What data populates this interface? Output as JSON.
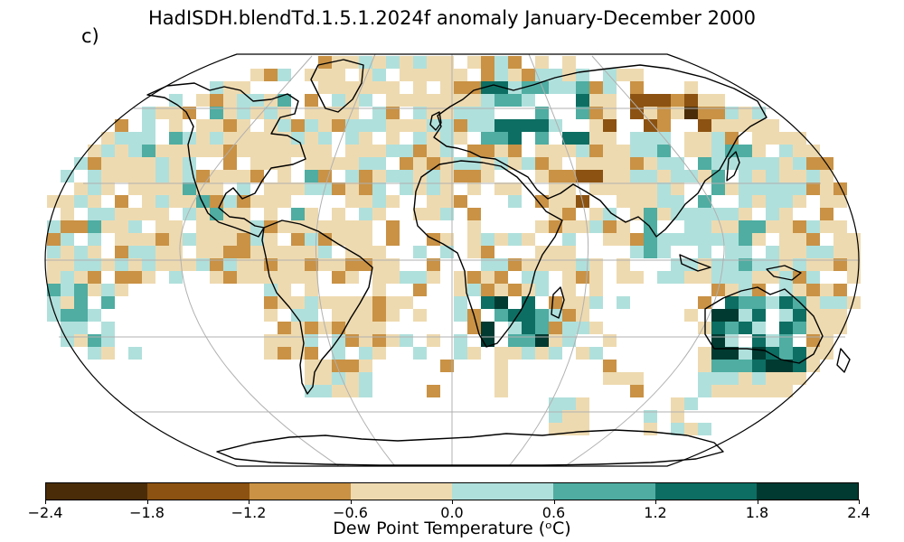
{
  "title": "HadISDH.blendTd.1.5.1.2024f anomaly January-December 2000",
  "panel_label": "c)",
  "colorbar": {
    "label": "Dew Point Temperature (ᵒC)",
    "ticks": [
      "−2.4",
      "−1.8",
      "−1.2",
      "−0.6",
      "0.0",
      "0.6",
      "1.2",
      "1.8",
      "2.4"
    ],
    "colors": [
      "#4a2d08",
      "#8c5211",
      "#c99245",
      "#eedab0",
      "#b0e0dc",
      "#4fada2",
      "#0d6e63",
      "#003a31"
    ]
  },
  "map": {
    "projection": "Robinson",
    "ocean_color": "#ffffff",
    "gridline_color": "#b0b0b0",
    "coastline_color": "#000000"
  }
}
